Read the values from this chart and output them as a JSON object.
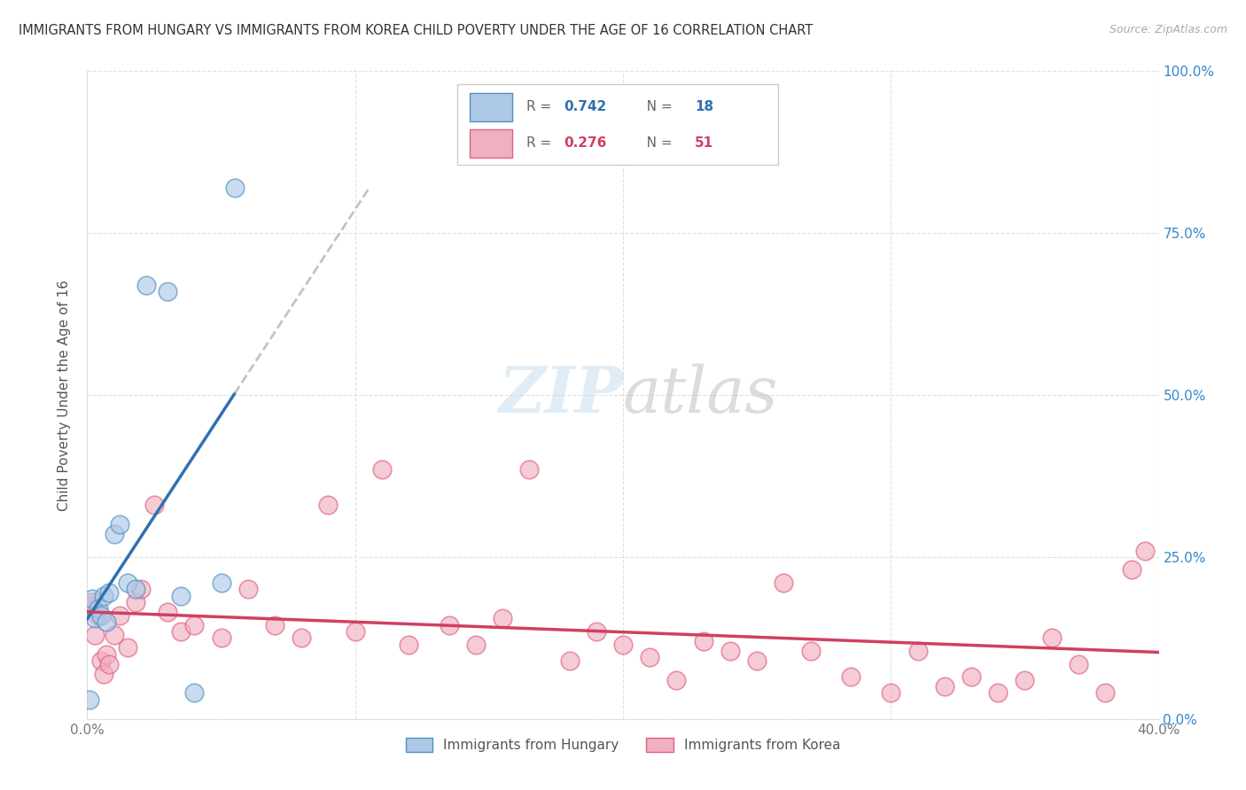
{
  "title": "IMMIGRANTS FROM HUNGARY VS IMMIGRANTS FROM KOREA CHILD POVERTY UNDER THE AGE OF 16 CORRELATION CHART",
  "source": "Source: ZipAtlas.com",
  "ylabel": "Child Poverty Under the Age of 16",
  "xlim": [
    0.0,
    0.4
  ],
  "ylim": [
    0.0,
    1.0
  ],
  "hungary_R": 0.742,
  "hungary_N": 18,
  "korea_R": 0.276,
  "korea_N": 51,
  "hungary_color": "#aec8e8",
  "korea_color": "#f0b0c0",
  "hungary_line_color": "#3070b0",
  "korea_line_color": "#d04060",
  "hungary_edge_color": "#5090c0",
  "korea_edge_color": "#e06080",
  "hungary_x": [
    0.001,
    0.002,
    0.003,
    0.004,
    0.005,
    0.006,
    0.007,
    0.008,
    0.01,
    0.012,
    0.015,
    0.018,
    0.022,
    0.03,
    0.035,
    0.04,
    0.05,
    0.055
  ],
  "hungary_y": [
    0.03,
    0.185,
    0.155,
    0.17,
    0.16,
    0.19,
    0.15,
    0.195,
    0.285,
    0.3,
    0.21,
    0.2,
    0.67,
    0.66,
    0.19,
    0.04,
    0.21,
    0.82
  ],
  "korea_x": [
    0.001,
    0.002,
    0.003,
    0.004,
    0.005,
    0.006,
    0.007,
    0.008,
    0.01,
    0.012,
    0.015,
    0.018,
    0.02,
    0.025,
    0.03,
    0.035,
    0.04,
    0.05,
    0.06,
    0.07,
    0.08,
    0.09,
    0.1,
    0.11,
    0.12,
    0.135,
    0.145,
    0.155,
    0.165,
    0.18,
    0.19,
    0.2,
    0.21,
    0.22,
    0.23,
    0.24,
    0.25,
    0.26,
    0.27,
    0.285,
    0.3,
    0.31,
    0.32,
    0.33,
    0.34,
    0.35,
    0.36,
    0.37,
    0.38,
    0.39,
    0.395
  ],
  "korea_y": [
    0.175,
    0.18,
    0.13,
    0.16,
    0.09,
    0.07,
    0.1,
    0.085,
    0.13,
    0.16,
    0.11,
    0.18,
    0.2,
    0.33,
    0.165,
    0.135,
    0.145,
    0.125,
    0.2,
    0.145,
    0.125,
    0.33,
    0.135,
    0.385,
    0.115,
    0.145,
    0.115,
    0.155,
    0.385,
    0.09,
    0.135,
    0.115,
    0.095,
    0.06,
    0.12,
    0.105,
    0.09,
    0.21,
    0.105,
    0.065,
    0.04,
    0.105,
    0.05,
    0.065,
    0.04,
    0.06,
    0.125,
    0.085,
    0.04,
    0.23,
    0.26
  ]
}
